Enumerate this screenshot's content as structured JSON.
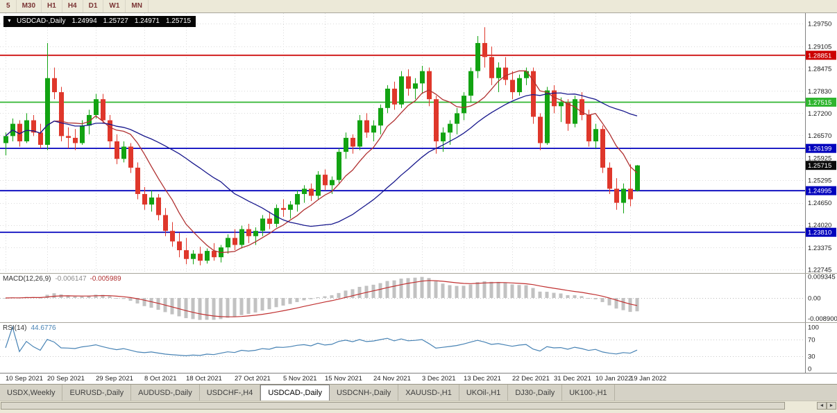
{
  "toolbar": {
    "periods": [
      "5",
      "M30",
      "H1",
      "H4",
      "D1",
      "W1",
      "MN"
    ]
  },
  "chart": {
    "title": {
      "dropdown_icon": "▼",
      "symbol": "USDCAD-,Daily",
      "open": "1.24994",
      "high": "1.25727",
      "low": "1.24971",
      "close": "1.25715"
    }
  },
  "chart_data": {
    "type": "candlestick",
    "symbol": "USDCAD-,Daily",
    "scale": {
      "p_max": 1.3005,
      "p_min": 1.2265
    },
    "price_ticks": [
      "1.29750",
      "1.29105",
      "1.28475",
      "1.27830",
      "1.27200",
      "1.26570",
      "1.25925",
      "1.25295",
      "1.24650",
      "1.24020",
      "1.23375",
      "1.22745"
    ],
    "levels": [
      {
        "price": 1.28851,
        "label": "1.28851",
        "color_key": "level_red"
      },
      {
        "price": 1.27515,
        "label": "1.27515",
        "color_key": "level_green"
      },
      {
        "price": 1.26199,
        "label": "1.26199",
        "color_key": "level_blue"
      },
      {
        "price": 1.24995,
        "label": "1.24995",
        "color_key": "level_blue"
      },
      {
        "price": 1.2381,
        "label": "1.23810",
        "color_key": "level_blue"
      }
    ],
    "current_price": {
      "price": 1.25715,
      "label": "1.25715"
    },
    "moving_averages": [
      {
        "name": "fast",
        "period": 8,
        "color_key": "ma_fast"
      },
      {
        "name": "slow",
        "period": 26,
        "color_key": "ma_slow"
      }
    ],
    "x_ticks": [
      {
        "index": 0,
        "label": "10 Sep 2021"
      },
      {
        "index": 6,
        "label": "20 Sep 2021"
      },
      {
        "index": 13,
        "label": "29 Sep 2021"
      },
      {
        "index": 20,
        "label": "8 Oct 2021"
      },
      {
        "index": 26,
        "label": "18 Oct 2021"
      },
      {
        "index": 33,
        "label": "27 Oct 2021"
      },
      {
        "index": 40,
        "label": "5 Nov 2021"
      },
      {
        "index": 46,
        "label": "15 Nov 2021"
      },
      {
        "index": 53,
        "label": "24 Nov 2021"
      },
      {
        "index": 60,
        "label": "3 Dec 2021"
      },
      {
        "index": 66,
        "label": "13 Dec 2021"
      },
      {
        "index": 73,
        "label": "22 Dec 2021"
      },
      {
        "index": 79,
        "label": "31 Dec 2021"
      },
      {
        "index": 85,
        "label": "10 Jan 2022"
      },
      {
        "index": 90,
        "label": "19 Jan 2022"
      }
    ],
    "candles": [
      [
        1.2635,
        1.2665,
        1.26,
        1.2655
      ],
      [
        1.2655,
        1.2705,
        1.264,
        1.269
      ],
      [
        1.269,
        1.27,
        1.2625,
        1.264
      ],
      [
        1.264,
        1.272,
        1.2635,
        1.27
      ],
      [
        1.27,
        1.2715,
        1.2655,
        1.2665
      ],
      [
        1.2665,
        1.269,
        1.262,
        1.263
      ],
      [
        1.263,
        1.292,
        1.2615,
        1.282
      ],
      [
        1.282,
        1.285,
        1.276,
        1.278
      ],
      [
        1.278,
        1.2795,
        1.264,
        1.2655
      ],
      [
        1.2655,
        1.268,
        1.262,
        1.265
      ],
      [
        1.265,
        1.2675,
        1.2615,
        1.2635
      ],
      [
        1.2635,
        1.27,
        1.263,
        1.2685
      ],
      [
        1.2685,
        1.273,
        1.266,
        1.2715
      ],
      [
        1.2715,
        1.2775,
        1.2705,
        1.276
      ],
      [
        1.276,
        1.2775,
        1.269,
        1.27
      ],
      [
        1.27,
        1.2715,
        1.262,
        1.264
      ],
      [
        1.264,
        1.266,
        1.2575,
        1.259
      ],
      [
        1.259,
        1.264,
        1.258,
        1.2625
      ],
      [
        1.2625,
        1.2635,
        1.255,
        1.2565
      ],
      [
        1.2565,
        1.258,
        1.2475,
        1.249
      ],
      [
        1.249,
        1.251,
        1.2445,
        1.246
      ],
      [
        1.246,
        1.25,
        1.244,
        1.248
      ],
      [
        1.248,
        1.249,
        1.2415,
        1.243
      ],
      [
        1.243,
        1.245,
        1.237,
        1.2385
      ],
      [
        1.2385,
        1.241,
        1.234,
        1.2355
      ],
      [
        1.2355,
        1.238,
        1.231,
        1.233
      ],
      [
        1.233,
        1.2365,
        1.229,
        1.2305
      ],
      [
        1.2305,
        1.233,
        1.229,
        1.232
      ],
      [
        1.232,
        1.234,
        1.2287,
        1.23
      ],
      [
        1.23,
        1.2335,
        1.2292,
        1.2328
      ],
      [
        1.2328,
        1.235,
        1.23,
        1.231
      ],
      [
        1.231,
        1.2345,
        1.2295,
        1.2338
      ],
      [
        1.2338,
        1.2375,
        1.232,
        1.2365
      ],
      [
        1.2365,
        1.239,
        1.233,
        1.2345
      ],
      [
        1.2345,
        1.24,
        1.2335,
        1.239
      ],
      [
        1.239,
        1.2405,
        1.235,
        1.237
      ],
      [
        1.237,
        1.2395,
        1.2345,
        1.2385
      ],
      [
        1.2385,
        1.243,
        1.237,
        1.242
      ],
      [
        1.242,
        1.244,
        1.239,
        1.2405
      ],
      [
        1.2405,
        1.246,
        1.2395,
        1.245
      ],
      [
        1.245,
        1.2475,
        1.2425,
        1.2445
      ],
      [
        1.2445,
        1.247,
        1.242,
        1.246
      ],
      [
        1.246,
        1.25,
        1.244,
        1.249
      ],
      [
        1.249,
        1.2515,
        1.2465,
        1.2505
      ],
      [
        1.2505,
        1.252,
        1.247,
        1.2485
      ],
      [
        1.2485,
        1.2555,
        1.2475,
        1.2545
      ],
      [
        1.2545,
        1.256,
        1.25,
        1.2515
      ],
      [
        1.2515,
        1.254,
        1.249,
        1.253
      ],
      [
        1.253,
        1.262,
        1.252,
        1.261
      ],
      [
        1.261,
        1.2665,
        1.259,
        1.265
      ],
      [
        1.265,
        1.266,
        1.2605,
        1.2625
      ],
      [
        1.2625,
        1.2715,
        1.2615,
        1.27
      ],
      [
        1.27,
        1.272,
        1.265,
        1.2665
      ],
      [
        1.2665,
        1.27,
        1.264,
        1.2685
      ],
      [
        1.2685,
        1.2745,
        1.266,
        1.2735
      ],
      [
        1.2735,
        1.28,
        1.272,
        1.279
      ],
      [
        1.279,
        1.281,
        1.273,
        1.2745
      ],
      [
        1.2745,
        1.284,
        1.2735,
        1.2825
      ],
      [
        1.2825,
        1.2845,
        1.277,
        1.279
      ],
      [
        1.279,
        1.282,
        1.276,
        1.2805
      ],
      [
        1.2805,
        1.2855,
        1.2775,
        1.284
      ],
      [
        1.284,
        1.285,
        1.274,
        1.276
      ],
      [
        1.276,
        1.277,
        1.2605,
        1.264
      ],
      [
        1.264,
        1.268,
        1.261,
        1.2665
      ],
      [
        1.2665,
        1.27,
        1.263,
        1.269
      ],
      [
        1.269,
        1.2735,
        1.266,
        1.272
      ],
      [
        1.272,
        1.278,
        1.27,
        1.277
      ],
      [
        1.277,
        1.285,
        1.275,
        1.284
      ],
      [
        1.284,
        1.294,
        1.282,
        1.292
      ],
      [
        1.292,
        1.2965,
        1.285,
        1.288
      ],
      [
        1.288,
        1.291,
        1.28,
        1.282
      ],
      [
        1.282,
        1.2865,
        1.278,
        1.285
      ],
      [
        1.285,
        1.288,
        1.28,
        1.2815
      ],
      [
        1.2815,
        1.284,
        1.276,
        1.278
      ],
      [
        1.278,
        1.283,
        1.277,
        1.282
      ],
      [
        1.282,
        1.285,
        1.28,
        1.284
      ],
      [
        1.284,
        1.285,
        1.269,
        1.271
      ],
      [
        1.271,
        1.272,
        1.2615,
        1.2635
      ],
      [
        1.2635,
        1.2795,
        1.263,
        1.2785
      ],
      [
        1.2785,
        1.28,
        1.272,
        1.274
      ],
      [
        1.274,
        1.2765,
        1.2695,
        1.275
      ],
      [
        1.275,
        1.276,
        1.267,
        1.269
      ],
      [
        1.269,
        1.277,
        1.268,
        1.276
      ],
      [
        1.276,
        1.278,
        1.27,
        1.2715
      ],
      [
        1.2715,
        1.273,
        1.2625,
        1.264
      ],
      [
        1.264,
        1.269,
        1.262,
        1.2675
      ],
      [
        1.2675,
        1.2685,
        1.255,
        1.2565
      ],
      [
        1.2565,
        1.258,
        1.249,
        1.2505
      ],
      [
        1.2505,
        1.2535,
        1.2445,
        1.2465
      ],
      [
        1.2465,
        1.252,
        1.2435,
        1.2505
      ],
      [
        1.2505,
        1.2575,
        1.2455,
        1.2475
      ],
      [
        1.24994,
        1.25727,
        1.24971,
        1.25715
      ]
    ],
    "macd": {
      "label": "MACD(12,26,9)",
      "main_value": "-0.006147",
      "signal_value": "-0.005989",
      "params": [
        12,
        26,
        9
      ],
      "axis_labels": [
        "0.009345",
        "0.00",
        "-0.008900"
      ],
      "range_max": 0.0105
    },
    "rsi": {
      "label": "RSI(14)",
      "value": "44.6776",
      "period": 14,
      "axis_labels": [
        "100",
        "70",
        "30",
        "0"
      ],
      "levels": [
        70,
        30
      ],
      "range": [
        -10,
        110
      ]
    }
  },
  "tabs": {
    "items": [
      {
        "label": "USDX,Weekly",
        "active": false
      },
      {
        "label": "EURUSD-,Daily",
        "active": false
      },
      {
        "label": "AUDUSD-,Daily",
        "active": false
      },
      {
        "label": "USDCHF-,H4",
        "active": false
      },
      {
        "label": "USDCAD-,Daily",
        "active": true
      },
      {
        "label": "USDCNH-,Daily",
        "active": false
      },
      {
        "label": "XAUUSD-,H1",
        "active": false
      },
      {
        "label": "UKOil-,H1",
        "active": false
      },
      {
        "label": "DJ30-,Daily",
        "active": false
      },
      {
        "label": "UK100-,H1",
        "active": false
      }
    ]
  },
  "scrollbar": {
    "left_arrow": "◄",
    "right_arrow": "►"
  },
  "colors": {
    "bull": "#12a312",
    "bear": "#df372b",
    "ma_fast": "#b03030",
    "ma_slow": "#16168c",
    "macd_hist": "#c2c2c2",
    "macd_signal": "#c03030",
    "rsi_line": "#4682b4",
    "grid": "#d9d9d9",
    "level_red": "#cc0000",
    "level_green": "#2fb52f",
    "level_blue": "#0202bd",
    "current_badge": "#0a0a0a"
  }
}
